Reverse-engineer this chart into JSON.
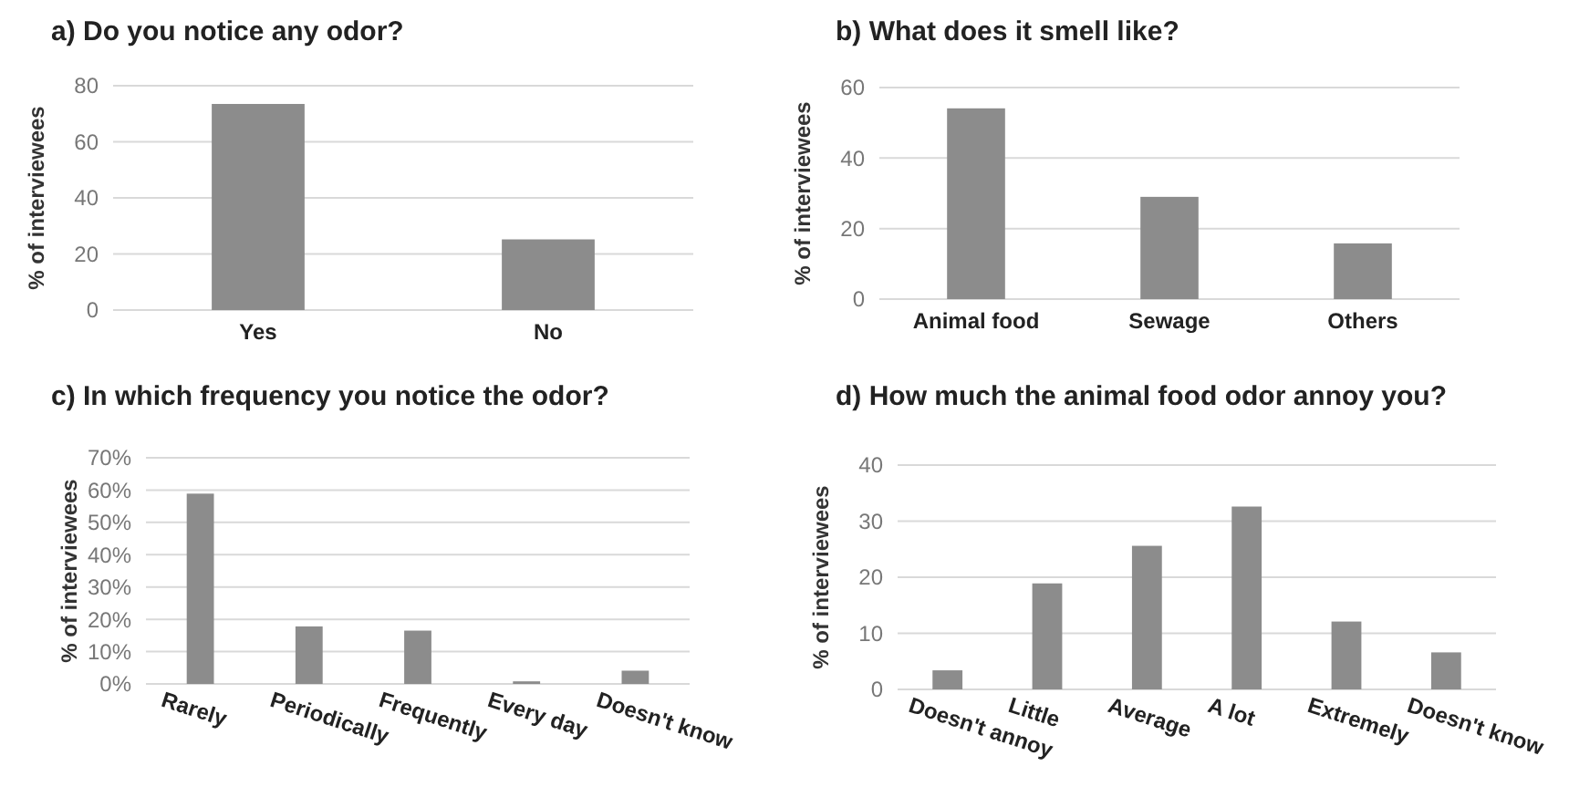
{
  "chart_data": [
    {
      "type": "bar",
      "title": "a) Do you notice any odor?",
      "ylabel": "% of interviewees",
      "categories": [
        "Yes",
        "No"
      ],
      "values": [
        73.5,
        25.2
      ],
      "color": "#8c8c8c",
      "ylim": [
        0,
        80
      ],
      "yticks": [
        0,
        20,
        40,
        60,
        80
      ],
      "grid": "y"
    },
    {
      "type": "bar",
      "title": "b) What does it smell like?",
      "ylabel": "% of interviewees",
      "categories": [
        "Animal food",
        "Sewage",
        "Others"
      ],
      "values": [
        54.1,
        29,
        15.8
      ],
      "color": "#8c8c8c",
      "ylim": [
        0,
        60
      ],
      "yticks": [
        0,
        20,
        40,
        60
      ],
      "grid": "y"
    },
    {
      "type": "bar",
      "title": "c) In which frequency you notice the odor?",
      "ylabel": "% of interviewees",
      "categories": [
        "Rarely",
        "Periodically",
        "Frequently",
        "Every day",
        "Doesn't know"
      ],
      "values": [
        58.9,
        17.8,
        16.5,
        0.8,
        4.1
      ],
      "color": "#8c8c8c",
      "ylim": [
        0,
        70
      ],
      "yticks": [
        {
          "value": 0,
          "label": "0%"
        },
        {
          "value": 10,
          "label": "10%"
        },
        {
          "value": 20,
          "label": "20%"
        },
        {
          "value": 30,
          "label": "30%"
        },
        {
          "value": 40,
          "label": "40%"
        },
        {
          "value": 50,
          "label": "50%"
        },
        {
          "value": 60,
          "label": "60%"
        },
        {
          "value": 70,
          "label": "70%"
        }
      ],
      "grid": "y"
    },
    {
      "type": "bar",
      "title": "d) How much the animal food odor annoy you?",
      "ylabel": "% of interviewees",
      "categories": [
        "Doesn't annoy",
        "Little",
        "Average",
        "A lot",
        "Extremely",
        "Doesn't know"
      ],
      "values": [
        3.4,
        18.9,
        25.6,
        32.6,
        12.1,
        6.6
      ],
      "color": "#8c8c8c",
      "ylim": [
        0,
        40
      ],
      "yticks": [
        0,
        10,
        20,
        30,
        40
      ],
      "grid": "y"
    }
  ]
}
